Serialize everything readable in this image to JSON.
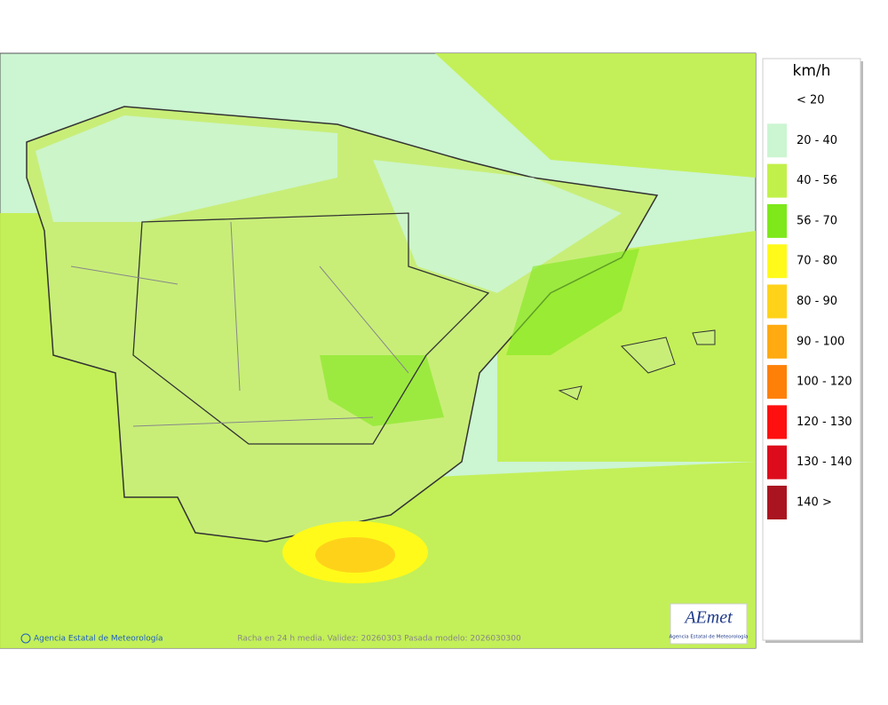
{
  "map": {
    "footer_left": "Agencia Estatal de Meteorología",
    "footer_center": "Racha en 24 h media. Validez: 20260303 Pasada modelo: 2026030300",
    "logo": {
      "name": "AEmet",
      "subtitle": "Agencia Estatal de Meteorología"
    }
  },
  "legend": {
    "unit": "km/h",
    "items": [
      {
        "label": "< 20"
      },
      {
        "label": "20 - 40",
        "color": "#ccf5d2"
      },
      {
        "label": "40 - 56",
        "color": "#c2f04a"
      },
      {
        "label": "56 - 70",
        "color": "#7ee81a"
      },
      {
        "label": "70 - 80",
        "color": "#fffa1a"
      },
      {
        "label": "80 - 90",
        "color": "#ffd21a"
      },
      {
        "label": "90 - 100",
        "color": "#ffaa10"
      },
      {
        "label": "100 - 120",
        "color": "#ff8008"
      },
      {
        "label": "120 - 130",
        "color": "#ff1010"
      },
      {
        "label": "130 - 140",
        "color": "#dd0c1c"
      },
      {
        "label": "140 >",
        "color": "#aa1420"
      }
    ]
  }
}
